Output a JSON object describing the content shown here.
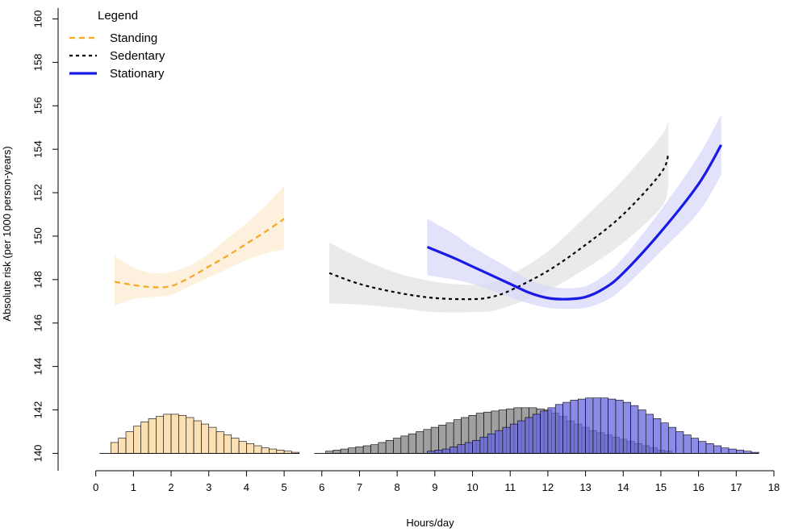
{
  "chart_data": {
    "type": "line",
    "xlabel": "Hours/day",
    "ylabel": "Absolute risk (per 1000 person-years)",
    "xlim": [
      -1,
      18.6
    ],
    "ylim": [
      139.2,
      160.5
    ],
    "x_ticks": [
      0,
      1,
      2,
      3,
      4,
      5,
      6,
      7,
      8,
      9,
      10,
      11,
      12,
      13,
      14,
      15,
      16,
      17,
      18
    ],
    "y_ticks": [
      140,
      142,
      144,
      146,
      148,
      150,
      152,
      154,
      156,
      158,
      160
    ],
    "histogram_baseline": 140,
    "legend": {
      "title": "Legend",
      "position": "top-left",
      "entries": [
        {
          "label": "Standing",
          "style": "dashed",
          "color": "#F5A623"
        },
        {
          "label": "Sedentary",
          "style": "dotted",
          "color": "#000000"
        },
        {
          "label": "Stationary",
          "style": "solid",
          "color": "#1A1AE6"
        }
      ]
    },
    "series": [
      {
        "name": "Standing",
        "line_color": "#F5A623",
        "band_color": "#FCEBD0",
        "x": [
          0.5,
          1.0,
          1.5,
          2.0,
          2.5,
          3.0,
          3.5,
          4.0,
          4.5,
          5.0
        ],
        "y": [
          147.9,
          147.75,
          147.65,
          147.7,
          148.1,
          148.6,
          149.1,
          149.65,
          150.2,
          150.8
        ],
        "lower": [
          146.8,
          147.1,
          147.2,
          147.3,
          147.7,
          148.1,
          148.5,
          148.9,
          149.2,
          149.4
        ],
        "upper": [
          149.1,
          148.55,
          148.3,
          148.35,
          148.65,
          149.2,
          149.9,
          150.6,
          151.4,
          152.3
        ]
      },
      {
        "name": "Sedentary",
        "line_color": "#000000",
        "band_color": "#E3E3E3",
        "x": [
          6.2,
          7.0,
          8.0,
          9.0,
          10.0,
          10.5,
          11.0,
          12.0,
          13.0,
          14.0,
          15.0,
          15.2
        ],
        "y": [
          148.3,
          147.8,
          147.4,
          147.15,
          147.1,
          147.2,
          147.5,
          148.4,
          149.6,
          151.0,
          152.9,
          153.8
        ],
        "lower": [
          146.9,
          146.85,
          146.7,
          146.5,
          146.5,
          146.55,
          146.8,
          147.5,
          148.5,
          149.7,
          151.3,
          152.3
        ],
        "upper": [
          149.7,
          149.0,
          148.3,
          147.9,
          147.75,
          147.85,
          148.2,
          149.3,
          150.9,
          152.6,
          154.6,
          155.3
        ]
      },
      {
        "name": "Stationary",
        "line_color": "#1A1AE6",
        "band_color": "#D8D8FA",
        "x": [
          8.8,
          9.5,
          10.0,
          11.0,
          11.5,
          12.0,
          12.5,
          13.0,
          13.5,
          14.0,
          15.0,
          16.0,
          16.6
        ],
        "y": [
          149.5,
          149.0,
          148.6,
          147.8,
          147.4,
          147.15,
          147.1,
          147.2,
          147.6,
          148.3,
          150.2,
          152.4,
          154.2
        ],
        "lower": [
          148.2,
          148.0,
          147.8,
          147.2,
          146.9,
          146.7,
          146.65,
          146.7,
          147.0,
          147.6,
          149.3,
          151.1,
          152.8
        ],
        "upper": [
          150.8,
          150.1,
          149.5,
          148.5,
          148.0,
          147.7,
          147.6,
          147.7,
          148.2,
          149.0,
          151.2,
          153.7,
          155.6
        ]
      }
    ],
    "histograms": [
      {
        "name": "Standing",
        "fill": "#F8D69A",
        "x_start": 0.4,
        "bin_width": 0.2,
        "heights": [
          140.5,
          140.7,
          141.0,
          141.25,
          141.45,
          141.6,
          141.7,
          141.8,
          141.8,
          141.75,
          141.65,
          141.5,
          141.35,
          141.2,
          141.0,
          140.85,
          140.7,
          140.55,
          140.45,
          140.35,
          140.25,
          140.2,
          140.15,
          140.1,
          140.05
        ]
      },
      {
        "name": "Sedentary",
        "fill": "#808080",
        "x_start": 6.1,
        "bin_width": 0.2,
        "heights": [
          140.1,
          140.15,
          140.2,
          140.25,
          140.3,
          140.35,
          140.4,
          140.5,
          140.6,
          140.7,
          140.8,
          140.9,
          141.0,
          141.1,
          141.2,
          141.3,
          141.4,
          141.55,
          141.65,
          141.75,
          141.85,
          141.9,
          141.95,
          142.0,
          142.05,
          142.1,
          142.1,
          142.1,
          142.05,
          142.0,
          141.85,
          141.7,
          141.5,
          141.35,
          141.2,
          141.05,
          140.95,
          140.85,
          140.75,
          140.65,
          140.55,
          140.45,
          140.35,
          140.25,
          140.15,
          140.1
        ]
      },
      {
        "name": "Stationary",
        "fill": "#6666E0",
        "x_start": 8.8,
        "bin_width": 0.2,
        "heights": [
          140.1,
          140.15,
          140.2,
          140.3,
          140.4,
          140.5,
          140.6,
          140.75,
          140.9,
          141.05,
          141.2,
          141.35,
          141.5,
          141.65,
          141.8,
          141.95,
          142.1,
          142.25,
          142.35,
          142.45,
          142.5,
          142.55,
          142.55,
          142.55,
          142.5,
          142.45,
          142.35,
          142.2,
          142.0,
          141.8,
          141.6,
          141.4,
          141.2,
          141.0,
          140.85,
          140.7,
          140.55,
          140.45,
          140.35,
          140.25,
          140.2,
          140.15,
          140.1,
          140.05
        ]
      }
    ]
  }
}
